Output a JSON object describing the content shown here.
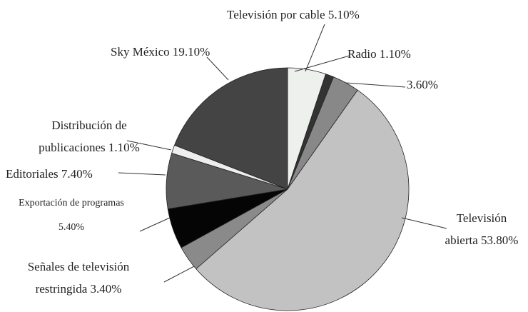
{
  "chart_data": {
    "type": "pie",
    "categories": [
      "Televisión por cable",
      "Radio",
      null,
      "Televisión abierta",
      "Señales de televisión restringida",
      "Exportación de programas",
      "Editoriales",
      "Distribución de publicaciones",
      "Sky México"
    ],
    "values": [
      5.1,
      1.1,
      3.6,
      53.8,
      3.4,
      5.4,
      7.4,
      1.1,
      19.1
    ],
    "value_labels": [
      "5.10%",
      "1.10%",
      "3.60%",
      "53.80%",
      "3.40%",
      "5.40%",
      "7.40%",
      "1.10%",
      "19.10%"
    ],
    "colors": [
      "#eef0ee",
      "#333333",
      "#888888",
      "#c2c2c2",
      "#8a8a8a",
      "#050505",
      "#5a5a5a",
      "#eeeeee",
      "#444444"
    ]
  }
}
